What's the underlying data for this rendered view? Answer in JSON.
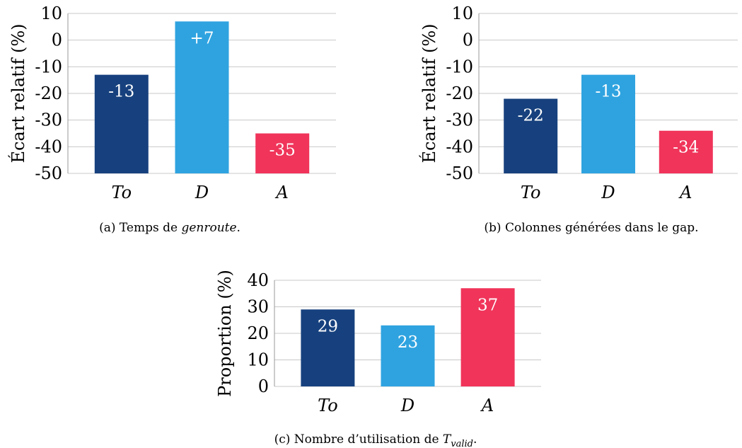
{
  "colors": {
    "To": "#17417e",
    "D": "#2fa3e0",
    "A": "#f0345a"
  },
  "chart_data": [
    {
      "type": "bar",
      "categories": [
        "To",
        "D",
        "A"
      ],
      "values": [
        -13,
        7,
        -35
      ],
      "data_labels": [
        "-13",
        "+7",
        "-35"
      ],
      "ylabel": "Écart relatif (%)",
      "ylim": [
        -50,
        10
      ],
      "yticks": [
        10,
        0,
        -10,
        -20,
        -30,
        -40,
        -50
      ],
      "ytick_labels": [
        "10",
        "0",
        "-10",
        "-20",
        "-30",
        "-40",
        "-50"
      ],
      "grid": true,
      "caption_prefix": "(a) Temps de ",
      "caption_em": "genroute",
      "caption_suffix": "."
    },
    {
      "type": "bar",
      "categories": [
        "To",
        "D",
        "A"
      ],
      "values": [
        -22,
        -13,
        -34
      ],
      "data_labels": [
        "-22",
        "-13",
        "-34"
      ],
      "ylabel": "Écart relatif (%)",
      "ylim": [
        -50,
        10
      ],
      "yticks": [
        10,
        0,
        -10,
        -20,
        -30,
        -40,
        -50
      ],
      "ytick_labels": [
        "10",
        "0",
        "-10",
        "-20",
        "-30",
        "-40",
        "-50"
      ],
      "grid": true,
      "caption_prefix": "(b) Colonnes générées dans le gap.",
      "caption_em": "",
      "caption_suffix": ""
    },
    {
      "type": "bar",
      "categories": [
        "To",
        "D",
        "A"
      ],
      "values": [
        29,
        23,
        37
      ],
      "data_labels": [
        "29",
        "23",
        "37"
      ],
      "ylabel": "Proportion (%)",
      "ylim": [
        0,
        40
      ],
      "yticks": [
        40,
        30,
        20,
        10,
        0
      ],
      "ytick_labels": [
        "40",
        "30",
        "20",
        "10",
        "0"
      ],
      "grid": true,
      "caption_prefix": "(c) Nombre d’utilisation de ",
      "caption_em": "T",
      "caption_sub": "valid",
      "caption_suffix": "."
    }
  ]
}
